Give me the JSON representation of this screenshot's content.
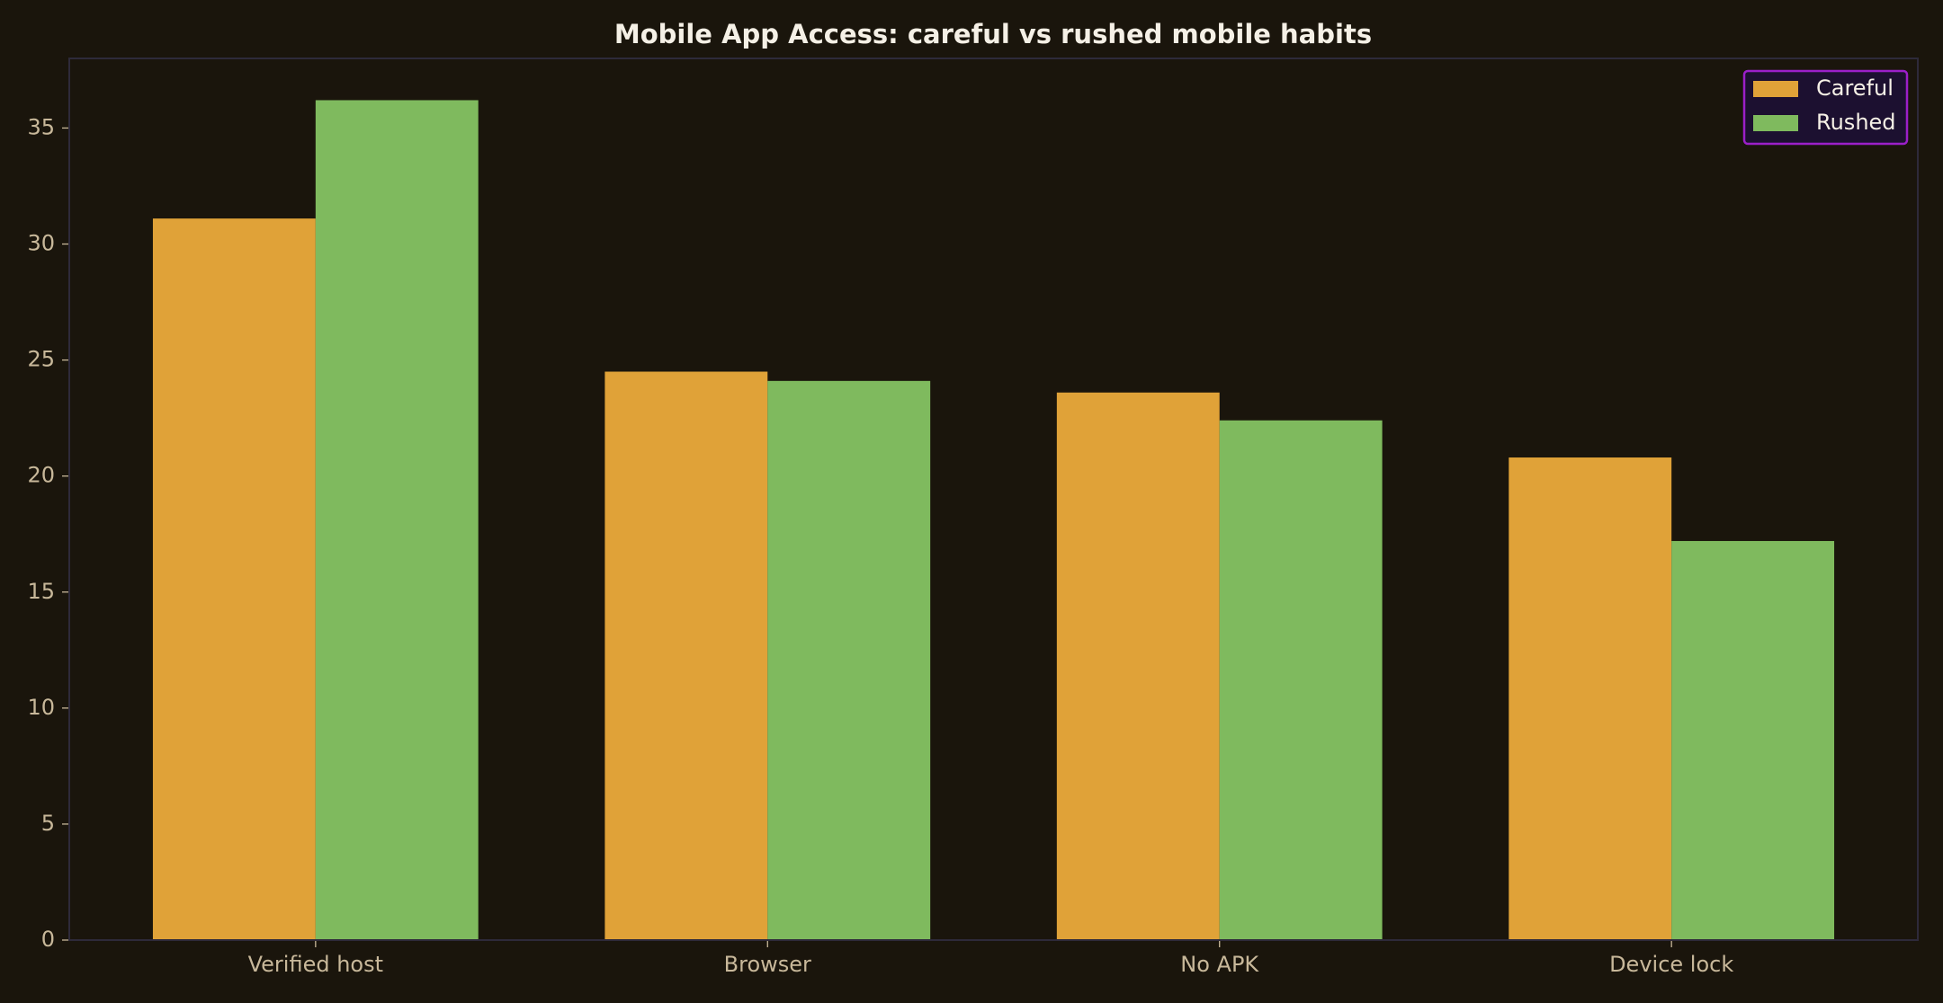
{
  "chart_data": {
    "type": "bar",
    "title": "Mobile App Access: careful vs rushed mobile habits",
    "categories": [
      "Verified host",
      "Browser",
      "No APK",
      "Device lock"
    ],
    "series": [
      {
        "name": "Careful",
        "color": "#e0a238",
        "values": [
          31.1,
          24.5,
          23.6,
          20.8
        ]
      },
      {
        "name": "Rushed",
        "color": "#7fba5e",
        "values": [
          36.2,
          24.1,
          22.4,
          17.2
        ]
      }
    ],
    "ylim": [
      0,
      38
    ],
    "yticks": [
      0,
      5,
      10,
      15,
      20,
      25,
      30,
      35
    ],
    "legend": "upper right"
  }
}
